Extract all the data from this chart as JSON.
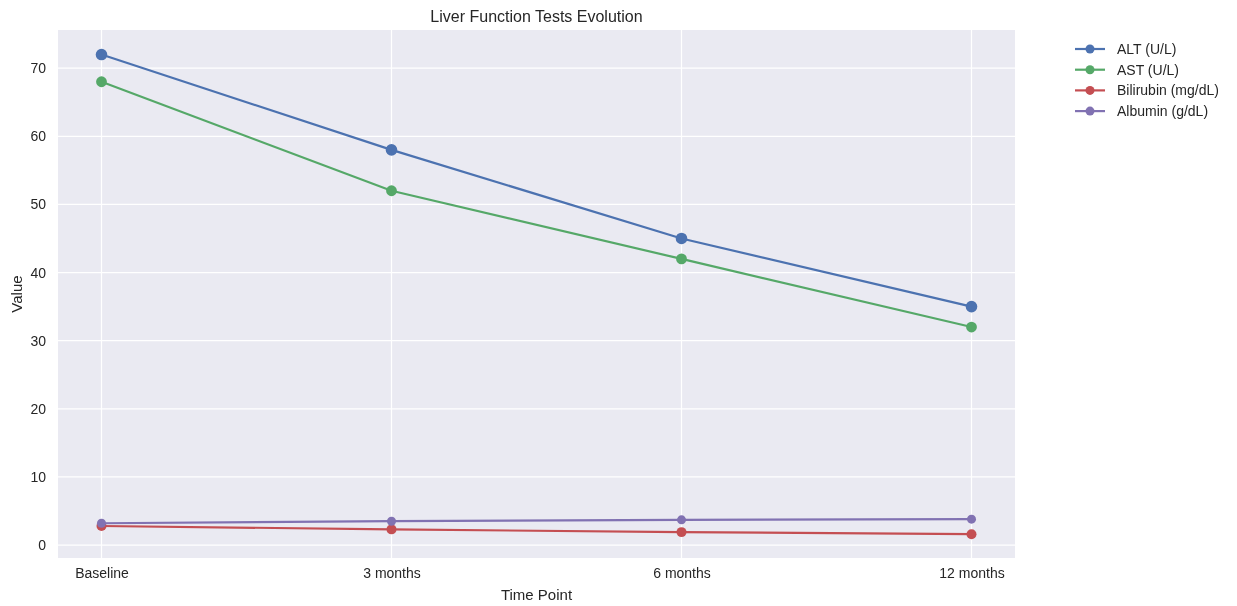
{
  "chart_data": {
    "type": "line",
    "title": "Liver Function Tests Evolution",
    "xlabel": "Time Point",
    "ylabel": "Value",
    "categories": [
      "Baseline",
      "3 months",
      "6 months",
      "12 months"
    ],
    "series": [
      {
        "name": "ALT (U/L)",
        "color": "#4c72b0",
        "values": [
          72,
          58,
          45,
          35
        ]
      },
      {
        "name": "AST (U/L)",
        "color": "#55a868",
        "values": [
          68,
          52,
          42,
          32
        ]
      },
      {
        "name": "Bilirubin (mg/dL)",
        "color": "#c44e52",
        "values": [
          2.8,
          2.3,
          1.9,
          1.6
        ]
      },
      {
        "name": "Albumin (g/dL)",
        "color": "#8172b2",
        "values": [
          3.2,
          3.5,
          3.7,
          3.8
        ]
      }
    ],
    "ylim": [
      -1.9,
      75.6
    ],
    "yticks": [
      0,
      10,
      20,
      30,
      40,
      50,
      60,
      70
    ],
    "grid": true,
    "legend": "right",
    "marker": "circle",
    "line_style": "solid"
  }
}
